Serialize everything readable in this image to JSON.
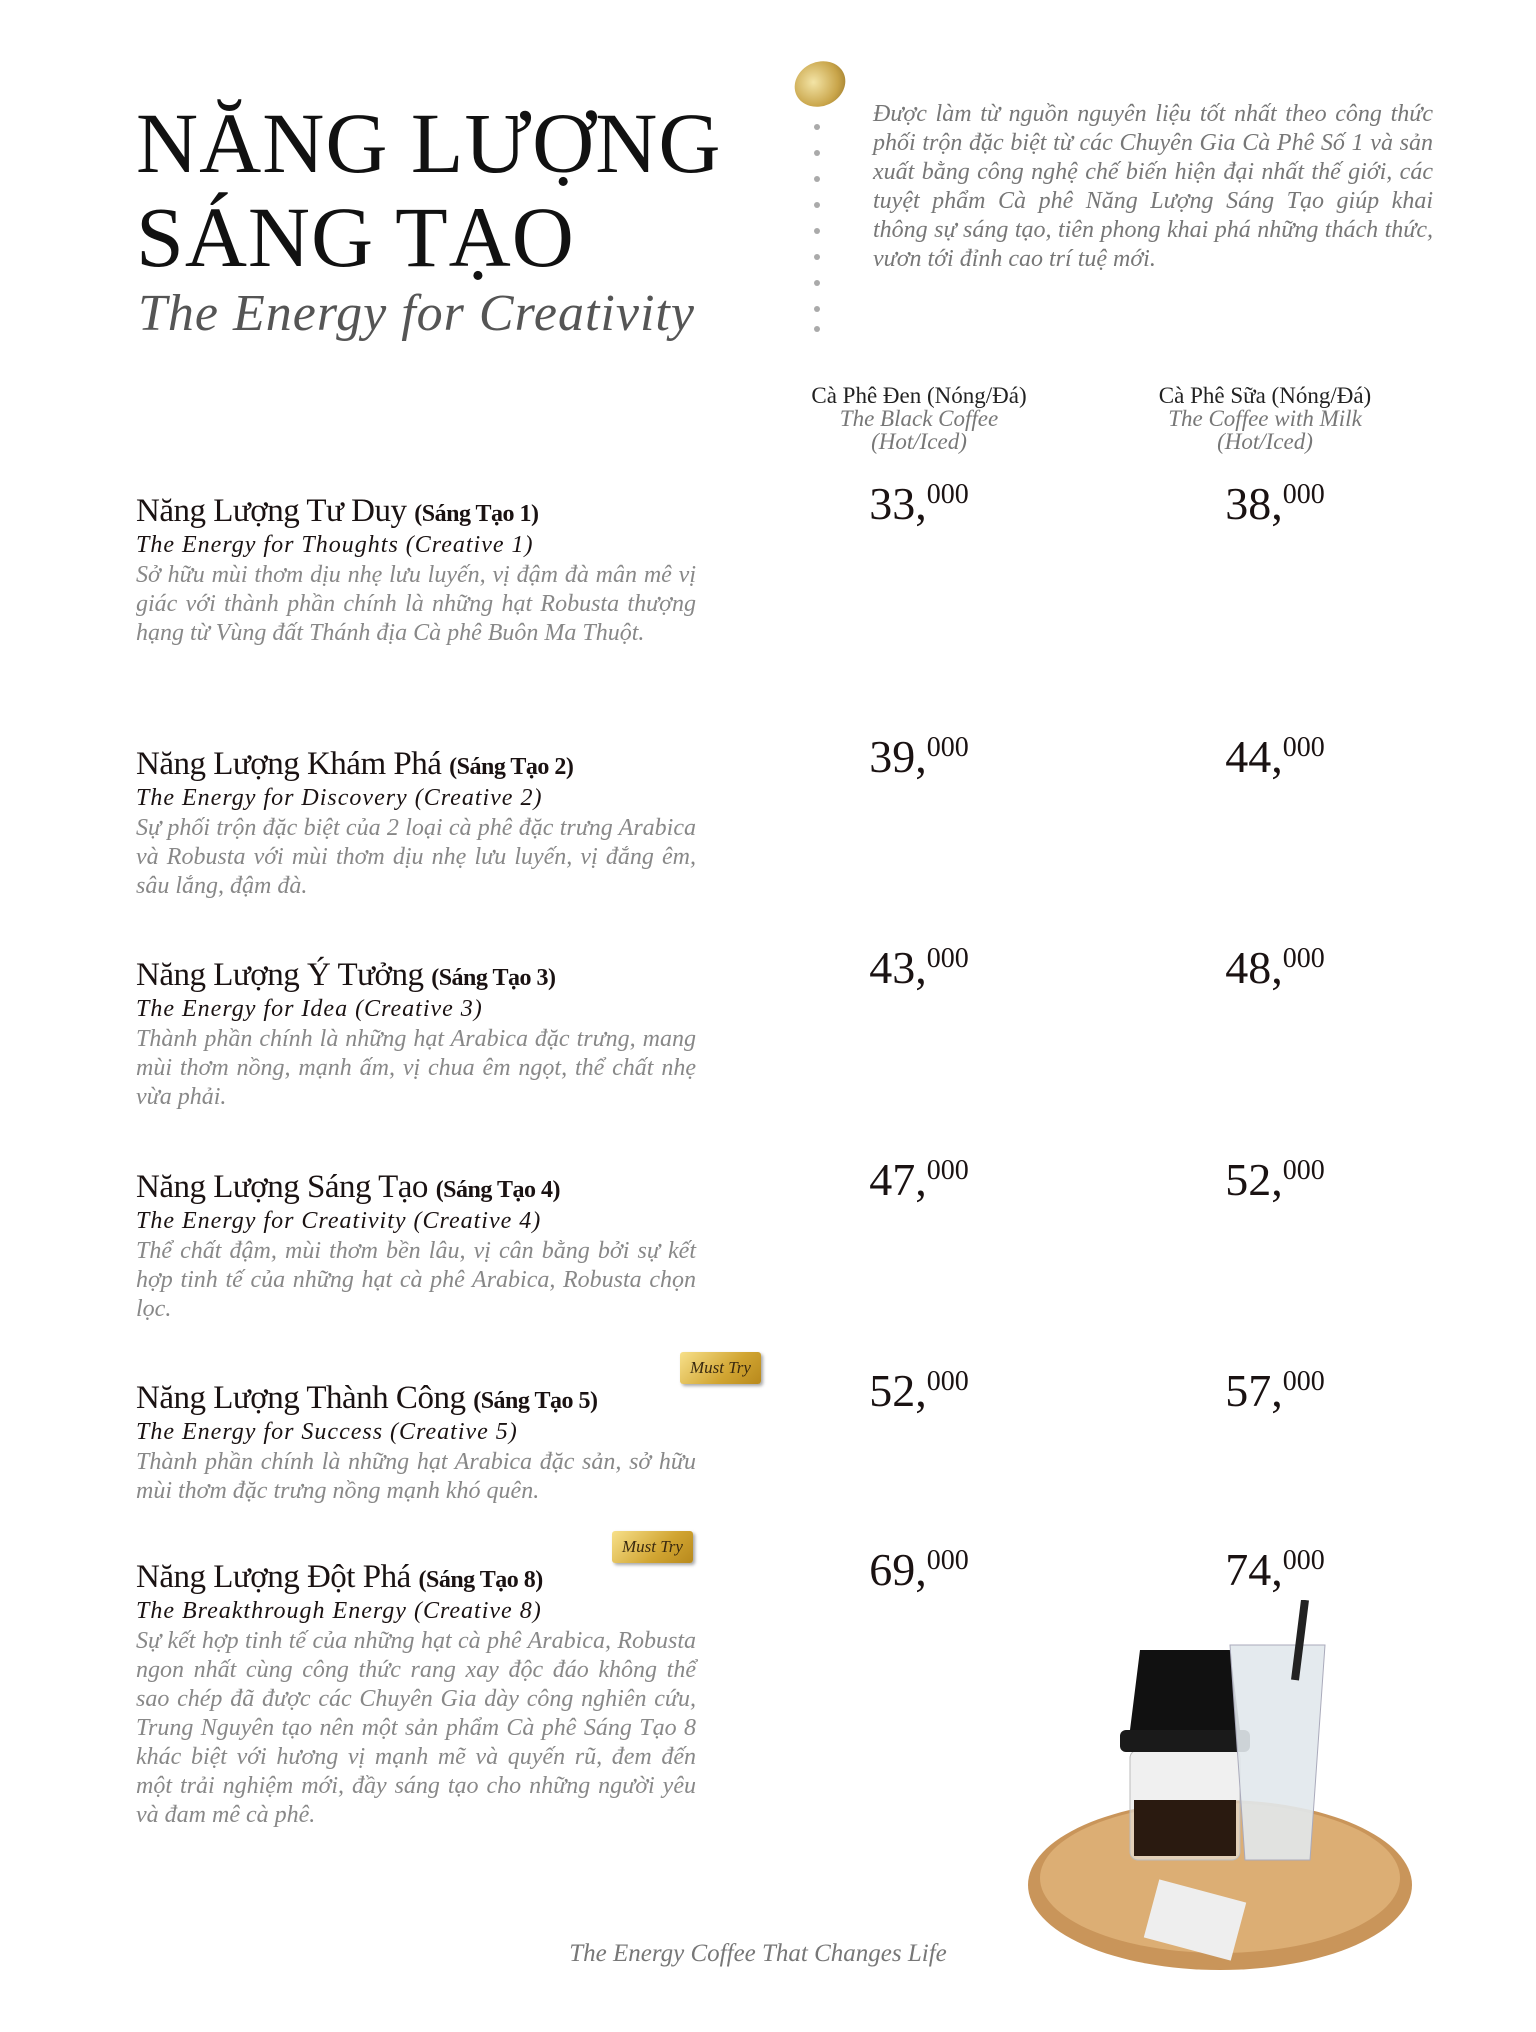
{
  "header": {
    "title_line1": "NĂNG LƯỢNG",
    "title_line2": "SÁNG TẠO",
    "subtitle": "The Energy for Creativity",
    "intro": "Được làm từ nguồn nguyên liệu tốt nhất theo công thức phối trộn đặc biệt từ các Chuyên Gia Cà Phê Số 1 và sản xuất bằng công nghệ chế biến hiện đại nhất thế giới, các tuyệt phẩm Cà phê Năng Lượng Sáng Tạo giúp khai thông sự sáng tạo, tiên phong khai phá những thách thức, vươn tới đỉnh cao trí tuệ mới."
  },
  "columns": [
    {
      "vi": "Cà Phê Đen (Nóng/Đá)",
      "en1": "The Black Coffee",
      "en2": "(Hot/Iced)"
    },
    {
      "vi": "Cà Phê Sữa (Nóng/Đá)",
      "en1": "The Coffee with Milk",
      "en2": "(Hot/Iced)"
    }
  ],
  "items": [
    {
      "name": "Năng Lượng Tư Duy",
      "tag": "(Sáng Tạo 1)",
      "en": "The Energy for Thoughts (Creative 1)",
      "desc": "Sở hữu mùi thơm dịu nhẹ lưu luyến, vị đậm đà mân mê vị giác với thành phần chính là những hạt Robusta thượng hạng từ Vùng đất Thánh địa Cà phê Buôn Ma Thuột.",
      "black": "33,",
      "black_sup": "000",
      "milk": "38,",
      "milk_sup": "000"
    },
    {
      "name": "Năng Lượng Khám Phá",
      "tag": "(Sáng Tạo 2)",
      "en": "The Energy for Discovery (Creative 2)",
      "desc": "Sự phối trộn đặc biệt của 2 loại cà phê đặc trưng Arabica và Robusta với mùi thơm dịu nhẹ lưu luyến, vị đắng êm, sâu lắng, đậm đà.",
      "black": "39,",
      "black_sup": "000",
      "milk": "44,",
      "milk_sup": "000"
    },
    {
      "name": "Năng Lượng Ý Tưởng",
      "tag": "(Sáng Tạo 3)",
      "en": "The Energy for Idea (Creative 3)",
      "desc": "Thành phần chính là những hạt Arabica đặc trưng, mang mùi thơm nồng, mạnh ấm, vị chua êm ngọt, thể chất nhẹ vừa phải.",
      "black": "43,",
      "black_sup": "000",
      "milk": "48,",
      "milk_sup": "000"
    },
    {
      "name": "Năng Lượng Sáng Tạo",
      "tag": "(Sáng Tạo 4)",
      "en": "The Energy for Creativity (Creative 4)",
      "desc": "Thể chất đậm, mùi thơm bền lâu, vị cân bằng bởi sự kết hợp tinh tế của những hạt cà phê Arabica, Robusta chọn lọc.",
      "black": "47,",
      "black_sup": "000",
      "milk": "52,",
      "milk_sup": "000"
    },
    {
      "name": "Năng Lượng Thành Công",
      "tag": "(Sáng Tạo 5)",
      "badge": "Must Try",
      "en": "The Energy for Success (Creative 5)",
      "desc": "Thành phần chính là những hạt Arabica đặc sản, sở hữu mùi thơm đặc trưng nồng mạnh khó quên.",
      "black": "52,",
      "black_sup": "000",
      "milk": "57,",
      "milk_sup": "000"
    },
    {
      "name": "Năng Lượng Đột Phá",
      "tag": "(Sáng Tạo 8)",
      "badge": "Must Try",
      "en": "The Breakthrough Energy (Creative 8)",
      "desc": "Sự kết hợp tinh tế của những hạt cà phê Arabica, Robusta ngon nhất cùng công thức rang xay độc đáo không thể sao chép đã được các Chuyên Gia dày công nghiên cứu, Trung Nguyên tạo nên một sản phẩm Cà phê Sáng Tạo 8 khác biệt với hương vị mạnh mẽ và quyến rũ, đem đến một trải nghiệm mới, đầy sáng tạo cho những người yêu và đam mê cà phê.",
      "black": "69,",
      "black_sup": "000",
      "milk": "74,",
      "milk_sup": "000"
    }
  ],
  "footer": "The Energy Coffee That Changes Life",
  "colors": {
    "accent_gold": "#d1a532",
    "text_dark": "#1a1212",
    "text_gray": "#888888"
  }
}
